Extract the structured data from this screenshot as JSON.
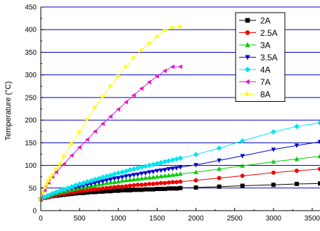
{
  "chart_data": {
    "type": "line",
    "title": "",
    "xlabel": "",
    "ylabel": "Temperature (°C)",
    "xlim": [
      0,
      3600
    ],
    "ylim": [
      0,
      450
    ],
    "x_ticks": [
      0,
      500,
      1000,
      1500,
      2000,
      2500,
      3000,
      3500
    ],
    "y_ticks": [
      0,
      50,
      100,
      150,
      200,
      250,
      300,
      350,
      400,
      450
    ],
    "grid": "horizontal",
    "grid_color": "#0000cc",
    "legend_position": "top-right",
    "series": [
      {
        "name": "2A",
        "color": "#000000",
        "marker": "square",
        "x": [
          0,
          50,
          100,
          150,
          200,
          250,
          300,
          350,
          400,
          450,
          500,
          550,
          600,
          650,
          700,
          750,
          800,
          850,
          900,
          950,
          1000,
          1050,
          1100,
          1150,
          1200,
          1250,
          1300,
          1350,
          1400,
          1450,
          1500,
          1550,
          1600,
          1650,
          1700,
          1750,
          1800,
          2000,
          2300,
          2600,
          3000,
          3300,
          3600
        ],
        "y": [
          25,
          28,
          30,
          32,
          33,
          34,
          35,
          36,
          37,
          38,
          39,
          39,
          40,
          41,
          41,
          42,
          42,
          43,
          43,
          44,
          44,
          45,
          45,
          45,
          46,
          46,
          46,
          47,
          47,
          47,
          48,
          48,
          48,
          49,
          49,
          49,
          50,
          51,
          53,
          55,
          57,
          59,
          60
        ]
      },
      {
        "name": "2.5A",
        "color": "#ee0000",
        "marker": "circle",
        "x": [
          0,
          50,
          100,
          150,
          200,
          250,
          300,
          350,
          400,
          450,
          500,
          550,
          600,
          650,
          700,
          750,
          800,
          850,
          900,
          950,
          1000,
          1050,
          1100,
          1150,
          1200,
          1250,
          1300,
          1350,
          1400,
          1450,
          1500,
          1550,
          1600,
          1650,
          1700,
          1750,
          1800,
          2000,
          2300,
          2600,
          3000,
          3300,
          3600
        ],
        "y": [
          25,
          28,
          30,
          32,
          34,
          36,
          37,
          39,
          40,
          41,
          43,
          44,
          45,
          46,
          47,
          48,
          49,
          50,
          51,
          52,
          53,
          53,
          54,
          55,
          56,
          57,
          57,
          58,
          59,
          59,
          60,
          61,
          61,
          62,
          63,
          63,
          64,
          67,
          72,
          77,
          84,
          88,
          92
        ]
      },
      {
        "name": "3A",
        "color": "#00cc00",
        "marker": "triangle-up",
        "x": [
          0,
          50,
          100,
          150,
          200,
          250,
          300,
          350,
          400,
          450,
          500,
          550,
          600,
          650,
          700,
          750,
          800,
          850,
          900,
          950,
          1000,
          1050,
          1100,
          1150,
          1200,
          1250,
          1300,
          1350,
          1400,
          1450,
          1500,
          1550,
          1600,
          1650,
          1700,
          1750,
          1800,
          2000,
          2300,
          2600,
          3000,
          3300,
          3600
        ],
        "y": [
          25,
          29,
          32,
          35,
          38,
          40,
          42,
          44,
          46,
          48,
          50,
          52,
          53,
          55,
          56,
          58,
          59,
          61,
          62,
          63,
          64,
          66,
          67,
          68,
          69,
          70,
          71,
          72,
          73,
          74,
          75,
          76,
          77,
          78,
          79,
          80,
          81,
          85,
          92,
          99,
          108,
          114,
          120
        ]
      },
      {
        "name": "3.5A",
        "color": "#0000cc",
        "marker": "triangle-down",
        "x": [
          0,
          50,
          100,
          150,
          200,
          250,
          300,
          350,
          400,
          450,
          500,
          550,
          600,
          650,
          700,
          750,
          800,
          850,
          900,
          950,
          1000,
          1050,
          1100,
          1150,
          1200,
          1250,
          1300,
          1350,
          1400,
          1450,
          1500,
          1550,
          1600,
          1650,
          1700,
          1750,
          1800,
          2000,
          2300,
          2600,
          3000,
          3300,
          3600
        ],
        "y": [
          25,
          29,
          33,
          36,
          39,
          42,
          44,
          47,
          49,
          51,
          53,
          55,
          57,
          59,
          61,
          63,
          65,
          67,
          69,
          71,
          72,
          74,
          76,
          77,
          79,
          80,
          82,
          83,
          85,
          86,
          88,
          89,
          90,
          92,
          93,
          94,
          96,
          101,
          111,
          121,
          135,
          144,
          152
        ]
      },
      {
        "name": "4A",
        "color": "#00e5ee",
        "marker": "diamond",
        "x": [
          0,
          50,
          100,
          150,
          200,
          250,
          300,
          350,
          400,
          450,
          500,
          550,
          600,
          650,
          700,
          750,
          800,
          850,
          900,
          950,
          1000,
          1050,
          1100,
          1150,
          1200,
          1250,
          1300,
          1350,
          1400,
          1450,
          1500,
          1550,
          1600,
          1650,
          1700,
          1750,
          1800,
          2000,
          2300,
          2600,
          3000,
          3300,
          3600
        ],
        "y": [
          25,
          30,
          34,
          38,
          41,
          44,
          47,
          50,
          53,
          56,
          59,
          61,
          64,
          66,
          69,
          71,
          74,
          76,
          78,
          81,
          83,
          85,
          87,
          90,
          92,
          94,
          96,
          98,
          100,
          102,
          104,
          106,
          108,
          110,
          112,
          114,
          116,
          124,
          138,
          154,
          174,
          186,
          194
        ]
      },
      {
        "name": "7A",
        "color": "#e020c8",
        "marker": "triangle-left",
        "x": [
          0,
          50,
          100,
          150,
          200,
          300,
          400,
          500,
          600,
          700,
          800,
          900,
          1000,
          1100,
          1200,
          1300,
          1400,
          1500,
          1600,
          1700,
          1800
        ],
        "y": [
          25,
          45,
          62,
          75,
          85,
          103,
          122,
          140,
          157,
          175,
          192,
          208,
          224,
          240,
          255,
          270,
          284,
          297,
          309,
          318,
          318
        ]
      },
      {
        "name": "8A",
        "color": "#ffff00",
        "marker": "triangle-right",
        "x": [
          0,
          25,
          50,
          75,
          100,
          125,
          150,
          200,
          250,
          300,
          400,
          500,
          600,
          700,
          800,
          900,
          1000,
          1100,
          1200,
          1300,
          1400,
          1500,
          1600,
          1700,
          1800
        ],
        "y": [
          25,
          40,
          50,
          58,
          65,
          72,
          78,
          92,
          103,
          120,
          148,
          174,
          202,
          228,
          252,
          275,
          297,
          318,
          338,
          355,
          370,
          385,
          398,
          405,
          407
        ]
      }
    ]
  }
}
